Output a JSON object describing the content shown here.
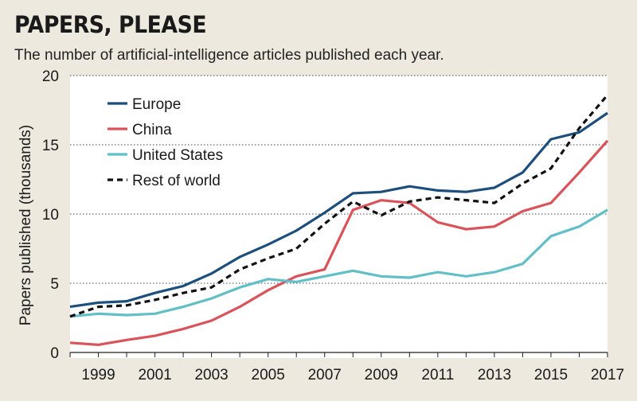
{
  "header": {
    "title": "PAPERS, PLEASE",
    "subtitle": "The number of artificial-intelligence articles published each year."
  },
  "chart_data": {
    "type": "line",
    "title": "PAPERS, PLEASE",
    "subtitle": "The number of artificial-intelligence articles published each year.",
    "xlabel": "",
    "ylabel": "Papers published (thousands)",
    "ylim": [
      0,
      20
    ],
    "xlim": [
      1998,
      2017
    ],
    "yticks": [
      0,
      5,
      10,
      15,
      20
    ],
    "xticks": [
      1999,
      2001,
      2003,
      2005,
      2007,
      2009,
      2011,
      2013,
      2015,
      2017
    ],
    "grid": "horizontal-dotted",
    "legend_position": "top-left",
    "x": [
      1998,
      1999,
      2000,
      2001,
      2002,
      2003,
      2004,
      2005,
      2006,
      2007,
      2008,
      2009,
      2010,
      2011,
      2012,
      2013,
      2014,
      2015,
      2016,
      2017
    ],
    "series": [
      {
        "name": "Europe",
        "color": "#1d4f7c",
        "dash": "solid",
        "values": [
          3.3,
          3.6,
          3.7,
          4.3,
          4.8,
          5.7,
          6.9,
          7.8,
          8.8,
          10.1,
          11.5,
          11.6,
          12.0,
          11.7,
          11.6,
          11.9,
          13.0,
          15.4,
          15.9,
          17.3
        ]
      },
      {
        "name": "China",
        "color": "#d9545a",
        "dash": "solid",
        "values": [
          0.7,
          0.55,
          0.9,
          1.2,
          1.7,
          2.3,
          3.3,
          4.5,
          5.5,
          6.0,
          10.3,
          11.0,
          10.8,
          9.4,
          8.9,
          9.1,
          10.2,
          10.8,
          13.0,
          15.3
        ]
      },
      {
        "name": "United States",
        "color": "#62bfc8",
        "dash": "solid",
        "values": [
          2.6,
          2.8,
          2.7,
          2.8,
          3.3,
          3.9,
          4.7,
          5.3,
          5.1,
          5.5,
          5.9,
          5.5,
          5.4,
          5.8,
          5.5,
          5.8,
          6.4,
          8.4,
          9.1,
          10.3
        ]
      },
      {
        "name": "Rest of world",
        "color": "#111111",
        "dash": "dashed",
        "values": [
          2.6,
          3.3,
          3.4,
          3.8,
          4.3,
          4.7,
          6.0,
          6.8,
          7.5,
          9.3,
          10.9,
          9.9,
          10.9,
          11.2,
          11.0,
          10.8,
          12.2,
          13.3,
          16.2,
          18.6
        ]
      }
    ]
  }
}
